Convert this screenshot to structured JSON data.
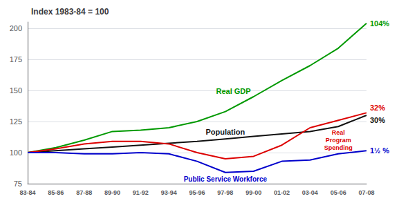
{
  "chart_data": {
    "type": "line",
    "title": "Index 1983-84 = 100",
    "categories": [
      "83-84",
      "85-86",
      "87-88",
      "89-90",
      "91-92",
      "93-94",
      "95-96",
      "97-98",
      "99-00",
      "01-02",
      "03-04",
      "05-06",
      "07-08"
    ],
    "series": [
      {
        "name": "Real GDP",
        "color": "#009900",
        "values": [
          100,
          104,
          110,
          117,
          118,
          120,
          125,
          133,
          145,
          158,
          170,
          184,
          204
        ],
        "end_label": "104%"
      },
      {
        "name": "Population",
        "color": "#111111",
        "values": [
          100,
          101.5,
          103,
          104.5,
          106,
          107.5,
          109,
          111,
          113,
          115,
          117,
          121,
          130
        ],
        "end_label": "30%"
      },
      {
        "name": "Real\nProgram\nSpending",
        "color": "#dd0000",
        "values": [
          100,
          103,
          107,
          109,
          109,
          107,
          100,
          95,
          97,
          106,
          120,
          126,
          132
        ],
        "end_label": "32%"
      },
      {
        "name": "Public Service Workforce",
        "color": "#0000cc",
        "values": [
          100,
          100,
          99,
          99,
          100,
          99,
          93,
          84,
          85,
          93,
          94,
          99,
          101.5
        ],
        "end_label": "1½ %"
      }
    ],
    "ylim": [
      75,
      205
    ],
    "yticks": [
      75,
      100,
      125,
      150,
      175,
      200
    ],
    "grid": true
  }
}
